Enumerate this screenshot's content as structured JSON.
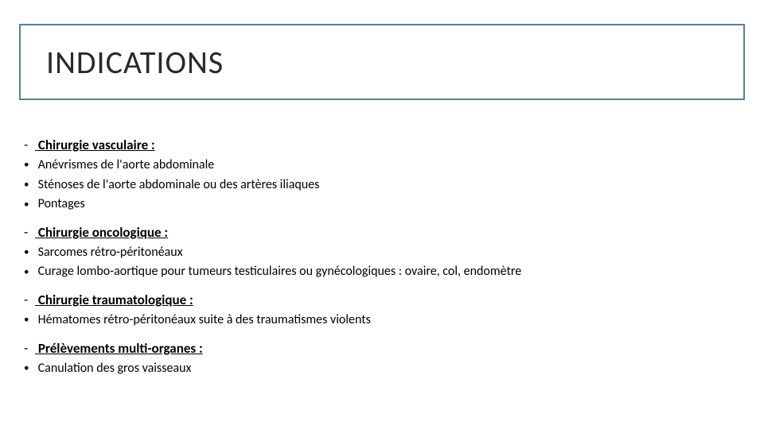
{
  "colors": {
    "border": "#5b7f95",
    "text": "#000000",
    "background": "#ffffff"
  },
  "title": "INDICATIONS",
  "sections": [
    {
      "heading": "Chirurgie vasculaire :",
      "items": [
        "Anévrismes de l'aorte abdominale",
        "Sténoses de l'aorte abdominale ou des artères iliaques",
        "Pontages"
      ]
    },
    {
      "heading": "Chirurgie oncologique :",
      "items": [
        "Sarcomes rétro-péritonéaux",
        "Curage lombo-aortique pour tumeurs testiculaires ou gynécologiques : ovaire, col, endomètre"
      ]
    },
    {
      "heading": "Chirurgie traumatologique :",
      "items": [
        "Hématomes rétro-péritonéaux suite à des traumatismes violents"
      ]
    },
    {
      "heading": "Prélèvements multi-organes :",
      "items": [
        "Canulation des gros vaisseaux"
      ]
    }
  ]
}
